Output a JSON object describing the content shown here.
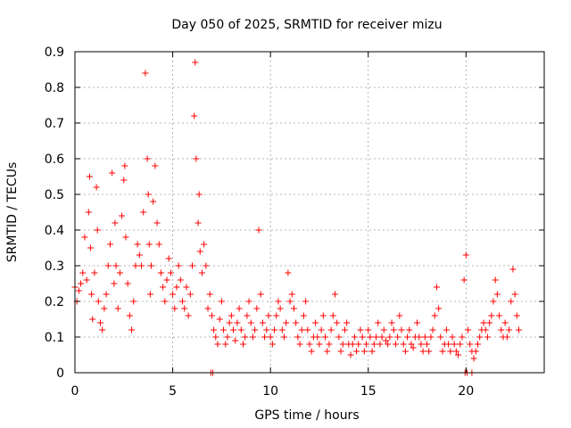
{
  "colors": {
    "points": "#ff0000",
    "grid": "#a0a0a0",
    "axes": "#000000",
    "background": "#ffffff"
  },
  "chart_data": {
    "type": "scatter",
    "title": "Day 050 of 2025, SRMTID for receiver mizu",
    "xlabel": "GPS time / hours",
    "ylabel": "SRMTID / TECUs",
    "xlim": [
      0,
      24
    ],
    "ylim": [
      0,
      0.9
    ],
    "xticks": [
      0,
      5,
      10,
      15,
      20
    ],
    "xtick_labels": [
      "0",
      "5",
      "10",
      "15",
      "20"
    ],
    "yticks": [
      0,
      0.1,
      0.2,
      0.3,
      0.4,
      0.5,
      0.6,
      0.7,
      0.8,
      0.9
    ],
    "ytick_labels": [
      "0",
      "0.1",
      "0.2",
      "0.3",
      "0.4",
      "0.5",
      "0.6",
      "0.7",
      "0.8",
      "0.9"
    ],
    "grid": true,
    "marker": "+",
    "series": [
      {
        "name": "SRMTID",
        "x": [
          0.0,
          0.1,
          0.2,
          0.3,
          0.4,
          0.5,
          0.6,
          0.7,
          0.75,
          0.8,
          0.85,
          0.9,
          1.0,
          1.1,
          1.15,
          1.2,
          1.3,
          1.4,
          1.5,
          1.6,
          1.7,
          1.8,
          1.9,
          2.0,
          2.05,
          2.1,
          2.2,
          2.3,
          2.4,
          2.5,
          2.55,
          2.6,
          2.7,
          2.8,
          2.9,
          3.0,
          3.1,
          3.2,
          3.3,
          3.4,
          3.5,
          3.6,
          3.7,
          3.75,
          3.8,
          3.85,
          3.9,
          4.0,
          4.1,
          4.2,
          4.3,
          4.4,
          4.5,
          4.6,
          4.7,
          4.8,
          4.9,
          5.0,
          5.1,
          5.2,
          5.3,
          5.4,
          5.5,
          5.6,
          5.7,
          5.8,
          5.9,
          6.0,
          6.1,
          6.15,
          6.2,
          6.3,
          6.35,
          6.4,
          6.5,
          6.6,
          6.7,
          6.8,
          6.9,
          7.0,
          7.1,
          7.2,
          7.3,
          7.4,
          7.5,
          7.6,
          7.7,
          7.8,
          7.9,
          8.0,
          8.1,
          8.2,
          8.3,
          8.4,
          8.5,
          8.6,
          8.7,
          8.8,
          8.9,
          9.0,
          9.1,
          9.2,
          9.3,
          9.4,
          9.5,
          9.6,
          9.7,
          9.8,
          9.9,
          10.0,
          10.1,
          10.2,
          10.3,
          10.4,
          10.5,
          10.6,
          10.7,
          10.8,
          10.9,
          11.0,
          11.1,
          11.2,
          11.3,
          11.4,
          11.5,
          11.6,
          11.7,
          11.8,
          11.9,
          12.0,
          12.1,
          12.2,
          12.3,
          12.4,
          12.5,
          12.6,
          12.7,
          12.8,
          12.9,
          13.0,
          13.1,
          13.2,
          13.3,
          13.4,
          13.5,
          13.6,
          13.7,
          13.8,
          13.9,
          14.0,
          14.1,
          14.2,
          14.3,
          14.4,
          14.5,
          14.6,
          14.7,
          14.8,
          14.9,
          15.0,
          15.1,
          15.2,
          15.3,
          15.4,
          15.5,
          15.6,
          15.7,
          15.8,
          15.9,
          16.0,
          16.1,
          16.2,
          16.3,
          16.4,
          16.5,
          16.6,
          16.7,
          16.8,
          16.9,
          17.0,
          17.1,
          17.2,
          17.3,
          17.4,
          17.5,
          17.6,
          17.7,
          17.8,
          17.9,
          18.0,
          18.1,
          18.2,
          18.3,
          18.4,
          18.5,
          18.6,
          18.7,
          18.8,
          18.9,
          19.0,
          19.1,
          19.2,
          19.3,
          19.4,
          19.5,
          19.6,
          19.7,
          19.8,
          19.9,
          20.0,
          20.1,
          20.2,
          20.3,
          20.4,
          20.5,
          20.6,
          20.7,
          20.8,
          20.9,
          21.0,
          21.1,
          21.2,
          21.3,
          21.4,
          21.5,
          21.6,
          21.7,
          21.8,
          21.9,
          22.0,
          22.1,
          22.2,
          22.3,
          22.4,
          22.5,
          22.6,
          22.7
        ],
        "y": [
          0.24,
          0.2,
          0.23,
          0.25,
          0.28,
          0.38,
          0.26,
          0.45,
          0.55,
          0.35,
          0.22,
          0.15,
          0.28,
          0.52,
          0.4,
          0.2,
          0.14,
          0.12,
          0.18,
          0.22,
          0.3,
          0.36,
          0.56,
          0.25,
          0.42,
          0.3,
          0.18,
          0.28,
          0.44,
          0.54,
          0.58,
          0.38,
          0.25,
          0.16,
          0.12,
          0.2,
          0.3,
          0.36,
          0.33,
          0.3,
          0.45,
          0.84,
          0.6,
          0.5,
          0.36,
          0.22,
          0.3,
          0.48,
          0.58,
          0.42,
          0.36,
          0.28,
          0.24,
          0.2,
          0.26,
          0.32,
          0.28,
          0.22,
          0.18,
          0.24,
          0.3,
          0.26,
          0.2,
          0.18,
          0.24,
          0.16,
          0.22,
          0.3,
          0.72,
          0.87,
          0.6,
          0.42,
          0.5,
          0.34,
          0.28,
          0.36,
          0.3,
          0.18,
          0.22,
          0.16,
          0.12,
          0.1,
          0.08,
          0.15,
          0.2,
          0.12,
          0.08,
          0.1,
          0.14,
          0.16,
          0.12,
          0.09,
          0.14,
          0.18,
          0.12,
          0.08,
          0.1,
          0.16,
          0.2,
          0.14,
          0.1,
          0.12,
          0.18,
          0.4,
          0.22,
          0.14,
          0.1,
          0.12,
          0.16,
          0.1,
          0.08,
          0.12,
          0.16,
          0.2,
          0.18,
          0.12,
          0.1,
          0.14,
          0.28,
          0.2,
          0.22,
          0.18,
          0.14,
          0.1,
          0.08,
          0.12,
          0.16,
          0.2,
          0.12,
          0.08,
          0.06,
          0.1,
          0.14,
          0.1,
          0.08,
          0.12,
          0.16,
          0.1,
          0.06,
          0.08,
          0.12,
          0.16,
          0.22,
          0.14,
          0.1,
          0.06,
          0.08,
          0.12,
          0.14,
          0.08,
          0.05,
          0.08,
          0.1,
          0.06,
          0.08,
          0.12,
          0.1,
          0.06,
          0.08,
          0.12,
          0.1,
          0.06,
          0.08,
          0.1,
          0.14,
          0.08,
          0.1,
          0.12,
          0.09,
          0.08,
          0.1,
          0.14,
          0.12,
          0.08,
          0.1,
          0.16,
          0.12,
          0.08,
          0.06,
          0.1,
          0.12,
          0.08,
          0.07,
          0.1,
          0.14,
          0.1,
          0.08,
          0.06,
          0.1,
          0.08,
          0.06,
          0.1,
          0.12,
          0.16,
          0.24,
          0.18,
          0.1,
          0.06,
          0.08,
          0.12,
          0.08,
          0.06,
          0.1,
          0.08,
          0.06,
          0.05,
          0.08,
          0.1,
          0.26,
          0.33,
          0.12,
          0.08,
          0.06,
          0.04,
          0.06,
          0.08,
          0.1,
          0.12,
          0.14,
          0.12,
          0.1,
          0.14,
          0.16,
          0.2,
          0.26,
          0.22,
          0.16,
          0.12,
          0.1,
          0.14,
          0.1,
          0.12,
          0.2,
          0.29,
          0.22,
          0.16,
          0.12
        ],
        "extra_points": {
          "x": [
            6.95,
            7.05,
            19.95,
            20.05,
            20.3
          ],
          "y": [
            0.0,
            0.0,
            0.0,
            0.0,
            0.0
          ]
        }
      }
    ]
  }
}
